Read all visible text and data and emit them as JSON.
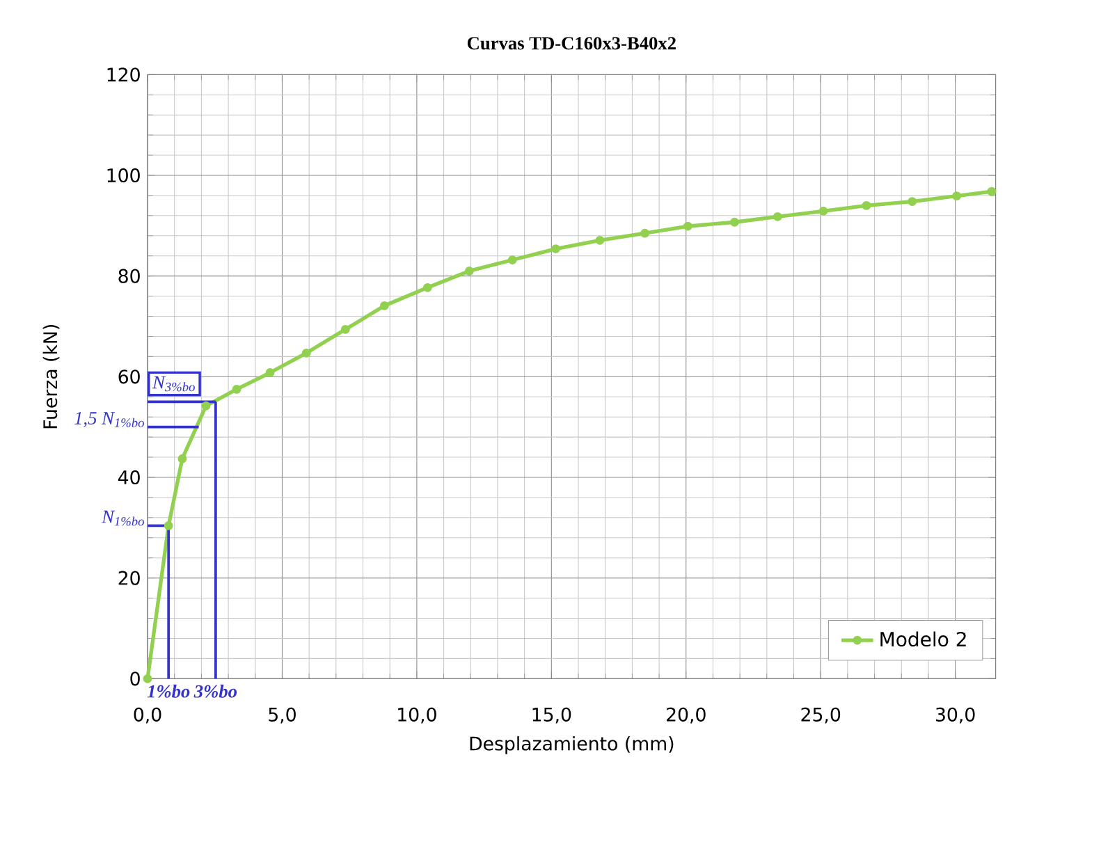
{
  "chart_data": {
    "type": "line",
    "title": "Curvas TD-C160x3-B40x2",
    "xlabel": "Desplazamiento (mm)",
    "ylabel": "Fuerza  (kN)",
    "xlim": [
      0,
      31.5
    ],
    "ylim": [
      0,
      120
    ],
    "xticks": [
      {
        "value": 0,
        "label": "0,0"
      },
      {
        "value": 5,
        "label": "5,0"
      },
      {
        "value": 10,
        "label": "10,0"
      },
      {
        "value": 15,
        "label": "15,0"
      },
      {
        "value": 20,
        "label": "20,0"
      },
      {
        "value": 25,
        "label": "25,0"
      },
      {
        "value": 30,
        "label": "30,0"
      }
    ],
    "yticks": [
      0,
      20,
      40,
      60,
      80,
      100,
      120
    ],
    "grid": true,
    "legend": "bottom right",
    "marker": "circle",
    "line_style": "solid",
    "series": [
      {
        "name": "Modelo 2",
        "color": "#92d050",
        "x": [
          0,
          0.78,
          1.29,
          2.17,
          3.31,
          4.55,
          5.9,
          7.35,
          8.8,
          10.4,
          11.95,
          13.55,
          15.16,
          16.8,
          18.47,
          20.07,
          21.8,
          23.4,
          25.1,
          26.7,
          28.4,
          30.05,
          31.35
        ],
        "values": [
          0,
          30.4,
          43.7,
          54.2,
          57.5,
          60.8,
          64.7,
          69.4,
          74.1,
          77.7,
          81.0,
          83.2,
          85.4,
          87.1,
          88.5,
          89.9,
          90.7,
          91.8,
          92.9,
          94.0,
          94.8,
          95.9,
          96.8
        ]
      }
    ],
    "annotations": [
      {
        "text": "N$_{1%bo}$",
        "x": 0.78,
        "y": 30.4
      },
      {
        "text": "1,5 N$_{1%bo}$",
        "x": 1.9,
        "y": 50
      },
      {
        "text": "N$_{3%bo}$",
        "x": 2.53,
        "y": 55
      },
      {
        "text": "1%bo",
        "x": 0.78,
        "y": 30.4
      },
      {
        "text": "3%bo",
        "x": 2.53,
        "y": 55
      }
    ]
  }
}
